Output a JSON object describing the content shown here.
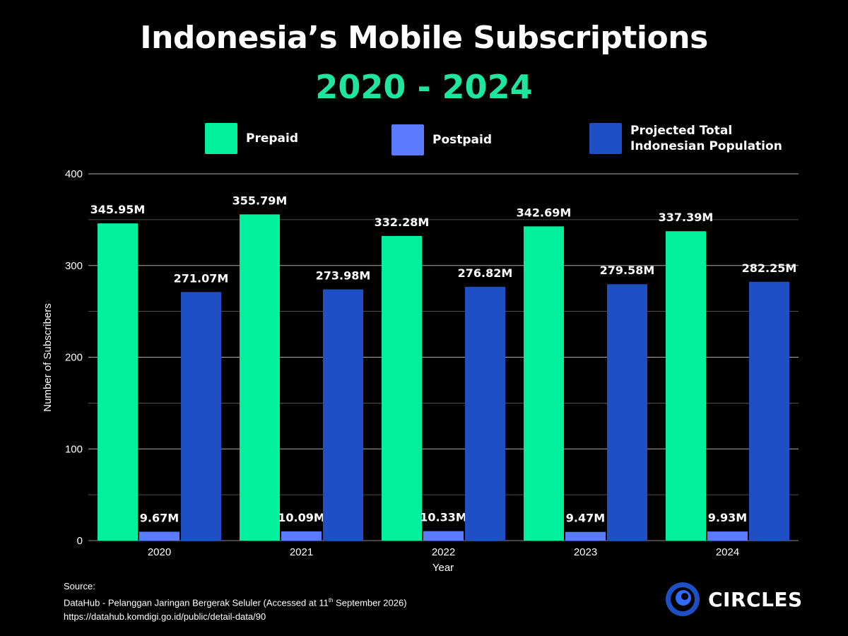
{
  "title": "Indonesia’s Mobile Subscriptions",
  "subtitle": "2020 - 2024",
  "colors": {
    "background": "#000000",
    "prepaid": "#00F09E",
    "postpaid": "#5B7BFF",
    "population": "#1E4FC4",
    "subtitle": "#1EE6A0",
    "grid": "#BDBDBD"
  },
  "chart_data": {
    "type": "bar",
    "categories": [
      "2020",
      "2021",
      "2022",
      "2023",
      "2024"
    ],
    "series": [
      {
        "name": "Prepaid",
        "values": [
          345.95,
          355.79,
          332.28,
          342.69,
          337.39
        ],
        "labels": [
          "345.95M",
          "355.79M",
          "332.28M",
          "342.69M",
          "337.39M"
        ]
      },
      {
        "name": "Postpaid",
        "values": [
          9.67,
          10.09,
          10.33,
          9.47,
          9.93
        ],
        "labels": [
          "9.67M",
          "10.09M",
          "10.33M",
          "9.47M",
          "9.93M"
        ]
      },
      {
        "name": "Projected Total Indonesian Population",
        "values": [
          271.07,
          273.98,
          276.82,
          279.58,
          282.25
        ],
        "labels": [
          "271.07M",
          "273.98M",
          "276.82M",
          "279.58M",
          "282.25M"
        ]
      }
    ],
    "xlabel": "Year",
    "ylabel": "Number of Subscribers",
    "ylim": [
      0,
      400
    ],
    "yticks": [
      "0",
      "100",
      "200",
      "300",
      "400"
    ],
    "grid": true,
    "legend_position": "top"
  },
  "legend": [
    {
      "label_lines": [
        "Prepaid"
      ]
    },
    {
      "label_lines": [
        "Postpaid"
      ]
    },
    {
      "label_lines": [
        "Projected Total",
        "Indonesian Population"
      ]
    }
  ],
  "source": {
    "heading": "Source:",
    "line1_prefix": "DataHub - Pelanggan Jaringan Bergerak Seluler (Accessed at 11",
    "line1_sup": "th",
    "line1_suffix": " September 2026)",
    "line2": "https://datahub.komdigi.go.id/public/detail-data/90"
  },
  "logo": {
    "text": "CIRCLES",
    "icon": "circles-logo-icon"
  }
}
